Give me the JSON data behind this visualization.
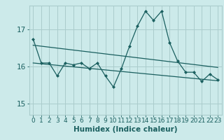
{
  "xlabel": "Humidex (Indice chaleur)",
  "bg_color": "#cceaea",
  "grid_color": "#aacccc",
  "line_color": "#1a5f5f",
  "xlim": [
    -0.5,
    23.5
  ],
  "ylim": [
    14.7,
    17.65
  ],
  "yticks": [
    15,
    16,
    17
  ],
  "xticks": [
    0,
    1,
    2,
    3,
    4,
    5,
    6,
    7,
    8,
    9,
    10,
    11,
    12,
    13,
    14,
    15,
    16,
    17,
    18,
    19,
    20,
    21,
    22,
    23
  ],
  "main_line_x": [
    0,
    1,
    2,
    3,
    4,
    5,
    6,
    7,
    8,
    9,
    10,
    11,
    12,
    13,
    14,
    15,
    16,
    17,
    18,
    19,
    20,
    21,
    22,
    23
  ],
  "main_line_y": [
    16.75,
    16.1,
    16.1,
    15.75,
    16.1,
    16.05,
    16.1,
    15.95,
    16.1,
    15.75,
    15.45,
    15.95,
    16.55,
    17.1,
    17.5,
    17.25,
    17.5,
    16.65,
    16.15,
    15.85,
    15.85,
    15.6,
    15.8,
    15.65
  ],
  "trend1_x": [
    0,
    23
  ],
  "trend1_y": [
    16.58,
    15.98
  ],
  "trend2_x": [
    0,
    23
  ],
  "trend2_y": [
    16.1,
    15.62
  ],
  "font_color": "#1a5f5f",
  "tick_fontsize": 6.5,
  "label_fontsize": 7.5
}
